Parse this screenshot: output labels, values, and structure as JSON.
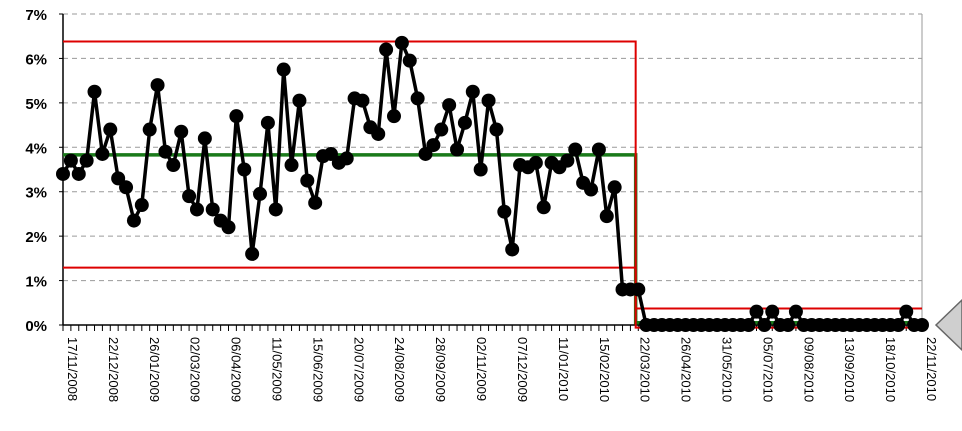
{
  "chart_data": {
    "type": "line",
    "title": "",
    "xlabel": "",
    "ylabel": "",
    "ylim": [
      0,
      0.07
    ],
    "grid": true,
    "y_ticks": [
      "0%",
      "1%",
      "2%",
      "3%",
      "4%",
      "5%",
      "6%",
      "7%"
    ],
    "x_ticks": [
      "17/11/2008",
      "22/12/2008",
      "26/01/2009",
      "02/03/2009",
      "06/04/2009",
      "11/05/2009",
      "15/06/2009",
      "20/07/2009",
      "24/08/2009",
      "28/09/2009",
      "02/11/2009",
      "07/12/2009",
      "11/01/2010",
      "15/02/2010",
      "22/03/2010",
      "26/04/2010",
      "31/05/2010",
      "05/07/2010",
      "09/08/2010",
      "13/09/2010",
      "18/10/2010",
      "22/11/2010"
    ],
    "x_start": "17/11/2008",
    "x_end": "22/11/2010",
    "series": [
      {
        "role": "data",
        "color": "#000000",
        "values": [
          0.034,
          0.037,
          0.034,
          0.037,
          0.0525,
          0.0385,
          0.044,
          0.033,
          0.031,
          0.0235,
          0.027,
          0.044,
          0.054,
          0.039,
          0.036,
          0.0435,
          0.029,
          0.026,
          0.042,
          0.026,
          0.0235,
          0.022,
          0.047,
          0.035,
          0.016,
          0.0295,
          0.0455,
          0.026,
          0.0575,
          0.036,
          0.0505,
          0.0325,
          0.0275,
          0.038,
          0.0385,
          0.0365,
          0.0375,
          0.051,
          0.0505,
          0.0445,
          0.043,
          0.062,
          0.047,
          0.0635,
          0.0595,
          0.051,
          0.0385,
          0.0405,
          0.044,
          0.0495,
          0.0395,
          0.0455,
          0.0525,
          0.035,
          0.0505,
          0.044,
          0.0255,
          0.017,
          0.036,
          0.0355,
          0.0365,
          0.0265,
          0.0365,
          0.0355,
          0.037,
          0.0395,
          0.032,
          0.0305,
          0.0395,
          0.0245,
          0.031,
          0.008,
          0.008,
          0.008,
          0,
          0,
          0,
          0,
          0,
          0,
          0,
          0,
          0,
          0,
          0,
          0,
          0,
          0,
          0.003,
          0,
          0.003,
          0,
          0,
          0.003,
          0,
          0,
          0,
          0,
          0,
          0,
          0,
          0,
          0,
          0,
          0,
          0,
          0,
          0.003,
          0,
          0
        ]
      },
      {
        "role": "mean",
        "color": "#1a7a1a",
        "segments": [
          {
            "from": "17/11/2008",
            "to": "22/03/2010",
            "value": 0.0383
          },
          {
            "from": "22/03/2010",
            "to": "22/11/2010",
            "value": 0.0005
          }
        ]
      },
      {
        "role": "upper-limit",
        "color": "#dd0000",
        "segments": [
          {
            "from": "17/11/2008",
            "to": "22/03/2010",
            "value": 0.0638
          },
          {
            "from": "22/03/2010",
            "to": "22/11/2010",
            "value": 0.0037
          }
        ]
      },
      {
        "role": "lower-limit",
        "color": "#dd0000",
        "segments": [
          {
            "from": "17/11/2008",
            "to": "22/03/2010",
            "value": 0.0129
          },
          {
            "from": "22/03/2010",
            "to": "22/11/2010",
            "value": -0.0006
          }
        ]
      }
    ]
  },
  "arrow_icon": "arrow-left-icon"
}
